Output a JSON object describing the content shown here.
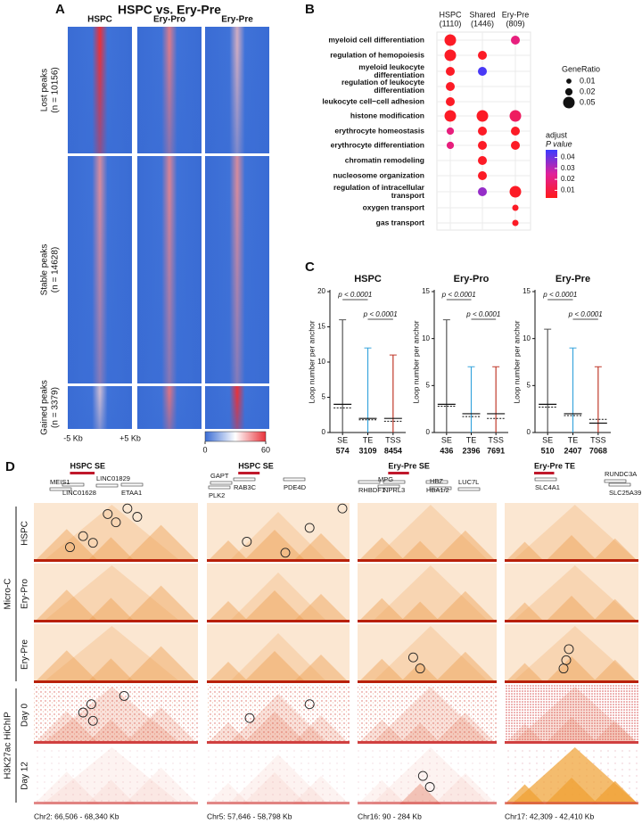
{
  "panel_a": {
    "label": "A",
    "title": "HSPC vs. Ery-Pre",
    "columns": [
      "HSPC",
      "Ery-Pro",
      "Ery-Pre"
    ],
    "sections": [
      {
        "label": "Lost peaks",
        "n": "(n = 10156)"
      },
      {
        "label": "Stable peaks",
        "n": "(n = 14628)"
      },
      {
        "label": "Gained peaks",
        "n": "(n = 3379)"
      }
    ],
    "x_labels": [
      "-5 Kb",
      "+5 Kb"
    ],
    "colorbar": {
      "lim": [
        0,
        60
      ],
      "ticks": [
        0,
        60
      ]
    }
  },
  "chart_data": [
    {
      "type": "dot",
      "panel_label": "B",
      "categories": [
        [
          "myeloid cell differentiation"
        ],
        [
          "regulation of hemopoiesis"
        ],
        [
          "myeloid leukocyte",
          "differentiation"
        ],
        [
          "regulation of leukocyte",
          "differentiation"
        ],
        [
          "leukocyte cell−cell adhesion"
        ],
        [
          "histone modification"
        ],
        [
          "erythrocyte homeostasis"
        ],
        [
          "erythrocyte differentiation"
        ],
        [
          "chromatin remodeling"
        ],
        [
          "nucleosome organization"
        ],
        [
          "regulation of intracellular",
          "transport"
        ],
        [
          "oxygen transport"
        ],
        [
          "gas transport"
        ]
      ],
      "series": [
        {
          "name": "HSPC",
          "count": "(1110)",
          "gene_ratio": [
            0.05,
            0.05,
            0.03,
            0.03,
            0.03,
            0.05,
            0.02,
            0.02,
            null,
            null,
            null,
            null,
            null
          ],
          "p_adjust": [
            0.005,
            0.005,
            0.005,
            0.005,
            0.005,
            0.005,
            0.02,
            0.02,
            null,
            null,
            null,
            null,
            null
          ]
        },
        {
          "name": "Shared",
          "count": "(1446)",
          "gene_ratio": [
            null,
            0.03,
            0.03,
            null,
            null,
            0.05,
            0.03,
            0.03,
            0.03,
            0.03,
            0.03,
            null,
            null
          ],
          "p_adjust": [
            null,
            0.005,
            0.045,
            null,
            null,
            0.005,
            0.005,
            0.005,
            0.005,
            0.005,
            0.035,
            null,
            null
          ]
        },
        {
          "name": "Ery-Pre",
          "count": "(809)",
          "gene_ratio": [
            0.03,
            null,
            null,
            null,
            null,
            0.05,
            0.03,
            0.03,
            null,
            null,
            0.05,
            0.015,
            0.015
          ],
          "p_adjust": [
            0.02,
            null,
            null,
            null,
            null,
            0.015,
            0.005,
            0.005,
            null,
            null,
            0.005,
            0.005,
            0.005
          ]
        }
      ],
      "size_legend": {
        "title": "GeneRatio",
        "values": [
          0.01,
          0.02,
          0.05
        ]
      },
      "color_legend": {
        "title": [
          "adjust",
          "P value"
        ],
        "lim": [
          0.003,
          0.047
        ],
        "ticks": [
          0.01,
          0.02,
          0.03,
          0.04
        ],
        "colors": [
          "#ff1a1a",
          "#e0209a",
          "#3a3cff"
        ]
      }
    },
    {
      "type": "range",
      "panel_label": "C",
      "title": "HSPC",
      "ylabel": "Loop number per anchor",
      "categories": [
        "SE",
        "TE",
        "TSS"
      ],
      "counts": [
        574,
        3109,
        8454
      ],
      "max": [
        16,
        12,
        11
      ],
      "median": [
        4,
        2,
        2
      ],
      "mean": [
        3.5,
        1.8,
        1.6
      ],
      "colors": [
        "#555555",
        "#3aa6dd",
        "#c0392b"
      ],
      "ylim": [
        0,
        20
      ],
      "yticks": [
        0,
        5,
        10,
        15,
        20
      ],
      "annotations": [
        "p < 0.0001",
        "p < 0.0001"
      ]
    },
    {
      "type": "range",
      "title": "Ery-Pro",
      "ylabel": "Loop number per anchor",
      "categories": [
        "SE",
        "TE",
        "TSS"
      ],
      "counts": [
        436,
        2396,
        7691
      ],
      "max": [
        12,
        7,
        7
      ],
      "median": [
        3,
        2,
        2
      ],
      "mean": [
        2.8,
        1.7,
        1.5
      ],
      "colors": [
        "#555555",
        "#3aa6dd",
        "#c0392b"
      ],
      "ylim": [
        0,
        15
      ],
      "yticks": [
        0,
        5,
        10,
        15
      ],
      "annotations": [
        "p < 0.0001",
        "p < 0.0001"
      ]
    },
    {
      "type": "range",
      "title": "Ery-Pre",
      "ylabel": "Loop number per anchor",
      "categories": [
        "SE",
        "TE",
        "TSS"
      ],
      "counts": [
        510,
        2407,
        7068
      ],
      "max": [
        11,
        9,
        7
      ],
      "median": [
        3,
        2,
        1
      ],
      "mean": [
        2.7,
        1.8,
        1.4
      ],
      "colors": [
        "#555555",
        "#3aa6dd",
        "#c0392b"
      ],
      "ylim": [
        0,
        15
      ],
      "yticks": [
        0,
        5,
        10,
        15
      ],
      "annotations": [
        "p < 0.0001",
        "p < 0.0001"
      ]
    }
  ],
  "panel_d": {
    "label": "D",
    "group_labels": [
      "Micro-C",
      "H3K27ac HiChIP"
    ],
    "row_labels": [
      "HSPC",
      "Ery-Pro",
      "Ery-Pre",
      "Day 0",
      "Day 12"
    ],
    "loci": [
      {
        "title": "HSPC SE",
        "genes": [
          "MEIS1",
          "LINC01628",
          "LINC01829",
          "ETAA1"
        ],
        "coordinates": "Chr2: 66,506 - 68,340 Kb"
      },
      {
        "title": "HSPC SE",
        "genes": [
          "GAPT",
          "PLK2",
          "RAB3C",
          "PDE4D"
        ],
        "coordinates": "Chr5: 57,646 - 58,798 Kb"
      },
      {
        "title": "Ery-Pre SE",
        "genes": [
          "MPG",
          "RHBDF1",
          "NPRL3",
          "HBZ",
          "HBA1/2",
          "LUC7L"
        ],
        "coordinates": "Chr16: 90 - 284 Kb"
      },
      {
        "title": "Ery-Pre TE",
        "genes": [
          "SLC4A1",
          "RUNDC3A",
          "SLC25A39"
        ],
        "coordinates": "Chr17: 42,309 - 42,410 Kb"
      }
    ]
  }
}
